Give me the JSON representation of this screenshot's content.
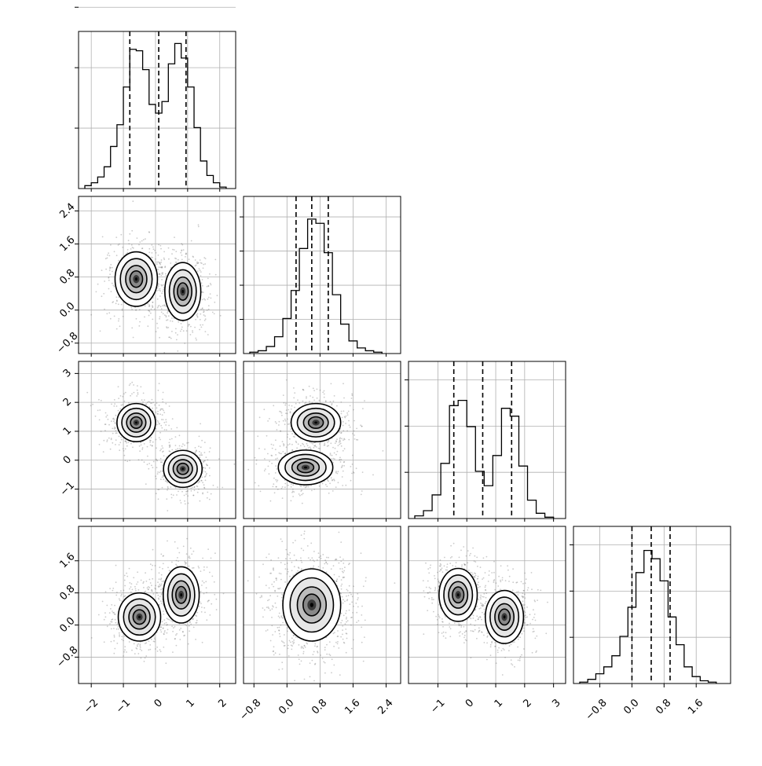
{
  "chart_data": {
    "type": "corner",
    "n_params": 4,
    "grid": true,
    "params": [
      {
        "range": [
          -2.2,
          2.3
        ],
        "ticks": [
          -2,
          -1,
          0,
          1,
          2
        ],
        "tick_labels": [
          "−2",
          "−1",
          "0",
          "1",
          "2"
        ],
        "quantiles": [
          -0.8,
          0.1,
          0.95
        ],
        "hist": [
          {
            "x0": -2.2,
            "x1": -2.0,
            "v": 2
          },
          {
            "x0": -2.0,
            "x1": -1.8,
            "v": 4
          },
          {
            "x0": -1.8,
            "x1": -1.6,
            "v": 8
          },
          {
            "x0": -1.6,
            "x1": -1.4,
            "v": 15
          },
          {
            "x0": -1.4,
            "x1": -1.2,
            "v": 29
          },
          {
            "x0": -1.2,
            "x1": -1.0,
            "v": 44
          },
          {
            "x0": -1.0,
            "x1": -0.8,
            "v": 70
          },
          {
            "x0": -0.8,
            "x1": -0.6,
            "v": 96
          },
          {
            "x0": -0.6,
            "x1": -0.4,
            "v": 95
          },
          {
            "x0": -0.4,
            "x1": -0.2,
            "v": 82
          },
          {
            "x0": -0.2,
            "x1": 0.0,
            "v": 58
          },
          {
            "x0": 0.0,
            "x1": 0.2,
            "v": 52
          },
          {
            "x0": 0.2,
            "x1": 0.4,
            "v": 60
          },
          {
            "x0": 0.4,
            "x1": 0.6,
            "v": 86
          },
          {
            "x0": 0.6,
            "x1": 0.8,
            "v": 100
          },
          {
            "x0": 0.8,
            "x1": 1.0,
            "v": 90
          },
          {
            "x0": 1.0,
            "x1": 1.2,
            "v": 70
          },
          {
            "x0": 1.2,
            "x1": 1.4,
            "v": 42
          },
          {
            "x0": 1.4,
            "x1": 1.6,
            "v": 19
          },
          {
            "x0": 1.6,
            "x1": 1.8,
            "v": 9
          },
          {
            "x0": 1.8,
            "x1": 2.0,
            "v": 4
          },
          {
            "x0": 2.0,
            "x1": 2.2,
            "v": 1
          }
        ]
      },
      {
        "range": [
          -0.9,
          2.6
        ],
        "ticks": [
          -0.8,
          0.0,
          0.8,
          1.6,
          2.4
        ],
        "tick_labels": [
          "−0.8",
          "0.0",
          "0.8",
          "1.6",
          "2.4"
        ],
        "quantiles": [
          0.22,
          0.6,
          1.0
        ],
        "hist": [
          {
            "x0": -0.9,
            "x1": -0.7,
            "v": 1
          },
          {
            "x0": -0.7,
            "x1": -0.5,
            "v": 2
          },
          {
            "x0": -0.5,
            "x1": -0.3,
            "v": 5
          },
          {
            "x0": -0.3,
            "x1": -0.1,
            "v": 12
          },
          {
            "x0": -0.1,
            "x1": 0.1,
            "v": 25
          },
          {
            "x0": 0.1,
            "x1": 0.3,
            "v": 45
          },
          {
            "x0": 0.3,
            "x1": 0.5,
            "v": 75
          },
          {
            "x0": 0.5,
            "x1": 0.7,
            "v": 96
          },
          {
            "x0": 0.7,
            "x1": 0.9,
            "v": 93
          },
          {
            "x0": 0.9,
            "x1": 1.1,
            "v": 72
          },
          {
            "x0": 1.1,
            "x1": 1.3,
            "v": 42
          },
          {
            "x0": 1.3,
            "x1": 1.5,
            "v": 21
          },
          {
            "x0": 1.5,
            "x1": 1.7,
            "v": 9
          },
          {
            "x0": 1.7,
            "x1": 1.9,
            "v": 4
          },
          {
            "x0": 1.9,
            "x1": 2.1,
            "v": 2
          },
          {
            "x0": 2.1,
            "x1": 2.3,
            "v": 1
          }
        ]
      },
      {
        "range": [
          -1.8,
          3.2
        ],
        "ticks": [
          -1,
          0,
          1,
          2,
          3
        ],
        "tick_labels": [
          "−1",
          "0",
          "1",
          "2",
          "3"
        ],
        "quantiles": [
          -0.45,
          0.55,
          1.55
        ],
        "hist": [
          {
            "x0": -1.8,
            "x1": -1.5,
            "v": 2
          },
          {
            "x0": -1.5,
            "x1": -1.2,
            "v": 6
          },
          {
            "x0": -1.2,
            "x1": -0.9,
            "v": 18
          },
          {
            "x0": -0.9,
            "x1": -0.6,
            "v": 42
          },
          {
            "x0": -0.6,
            "x1": -0.3,
            "v": 86
          },
          {
            "x0": -0.3,
            "x1": 0.0,
            "v": 90
          },
          {
            "x0": 0.0,
            "x1": 0.3,
            "v": 70
          },
          {
            "x0": 0.3,
            "x1": 0.6,
            "v": 36
          },
          {
            "x0": 0.6,
            "x1": 0.9,
            "v": 25
          },
          {
            "x0": 0.9,
            "x1": 1.2,
            "v": 48
          },
          {
            "x0": 1.2,
            "x1": 1.5,
            "v": 84
          },
          {
            "x0": 1.5,
            "x1": 1.8,
            "v": 78
          },
          {
            "x0": 1.8,
            "x1": 2.1,
            "v": 40
          },
          {
            "x0": 2.1,
            "x1": 2.4,
            "v": 14
          },
          {
            "x0": 2.4,
            "x1": 2.7,
            "v": 4
          },
          {
            "x0": 2.7,
            "x1": 3.0,
            "v": 1
          }
        ]
      },
      {
        "range": [
          -1.3,
          2.3
        ],
        "ticks": [
          -0.8,
          0.0,
          0.8,
          1.6
        ],
        "tick_labels": [
          "−0.8",
          "0.0",
          "0.8",
          "1.6"
        ],
        "quantiles": [
          0.0,
          0.48,
          0.95
        ],
        "hist": [
          {
            "x0": -1.3,
            "x1": -1.1,
            "v": 1
          },
          {
            "x0": -1.1,
            "x1": -0.9,
            "v": 3
          },
          {
            "x0": -0.9,
            "x1": -0.7,
            "v": 7
          },
          {
            "x0": -0.7,
            "x1": -0.5,
            "v": 12
          },
          {
            "x0": -0.5,
            "x1": -0.3,
            "v": 20
          },
          {
            "x0": -0.3,
            "x1": -0.1,
            "v": 34
          },
          {
            "x0": -0.1,
            "x1": 0.1,
            "v": 55
          },
          {
            "x0": 0.1,
            "x1": 0.3,
            "v": 80
          },
          {
            "x0": 0.3,
            "x1": 0.5,
            "v": 96
          },
          {
            "x0": 0.5,
            "x1": 0.7,
            "v": 90
          },
          {
            "x0": 0.7,
            "x1": 0.9,
            "v": 74
          },
          {
            "x0": 0.9,
            "x1": 1.1,
            "v": 48
          },
          {
            "x0": 1.1,
            "x1": 1.3,
            "v": 28
          },
          {
            "x0": 1.3,
            "x1": 1.5,
            "v": 12
          },
          {
            "x0": 1.5,
            "x1": 1.7,
            "v": 5
          },
          {
            "x0": 1.7,
            "x1": 1.9,
            "v": 2
          },
          {
            "x0": 1.9,
            "x1": 2.1,
            "v": 1
          }
        ]
      }
    ],
    "hist_yticks": [
      [
        500,
        1000,
        1500
      ],
      [
        500,
        1000,
        1500,
        2000
      ],
      [
        500,
        1000,
        1500
      ],
      [
        500,
        1000,
        1500
      ]
    ],
    "hist_ymax": [
      1300,
      2300,
      1700,
      1700
    ],
    "hist_peak_count": [
      1200,
      2050,
      1420,
      1500
    ],
    "modes_2d": {
      "1-0": [
        {
          "mx": -0.6,
          "my": 0.75,
          "sx": 0.33,
          "sy": 0.33,
          "w": 1
        },
        {
          "mx": 0.85,
          "my": 0.45,
          "sx": 0.28,
          "sy": 0.35,
          "w": 1
        }
      ],
      "2-0": [
        {
          "mx": -0.6,
          "my": 1.3,
          "sx": 0.3,
          "sy": 0.33,
          "w": 1
        },
        {
          "mx": 0.85,
          "my": -0.3,
          "sx": 0.3,
          "sy": 0.32,
          "w": 1
        }
      ],
      "2-1": [
        {
          "mx": 0.7,
          "my": 1.3,
          "sx": 0.3,
          "sy": 0.33,
          "w": 1
        },
        {
          "mx": 0.45,
          "my": -0.25,
          "sx": 0.33,
          "sy": 0.3,
          "w": 1
        }
      ],
      "3-0": [
        {
          "mx": -0.5,
          "my": 0.2,
          "sx": 0.33,
          "sy": 0.3,
          "w": 1
        },
        {
          "mx": 0.8,
          "my": 0.75,
          "sx": 0.28,
          "sy": 0.35,
          "w": 1
        }
      ],
      "3-1": [
        {
          "mx": 0.6,
          "my": 0.5,
          "sx": 0.35,
          "sy": 0.45,
          "w": 1
        }
      ],
      "3-2": [
        {
          "mx": -0.3,
          "my": 0.75,
          "sx": 0.33,
          "sy": 0.33,
          "w": 1
        },
        {
          "mx": 1.3,
          "my": 0.2,
          "sx": 0.33,
          "sy": 0.33,
          "w": 1
        }
      ]
    },
    "colors": {
      "line": "#000000",
      "grid": "#b0b0b0",
      "points": "#6b6b6b",
      "quantile": "#000000"
    }
  }
}
